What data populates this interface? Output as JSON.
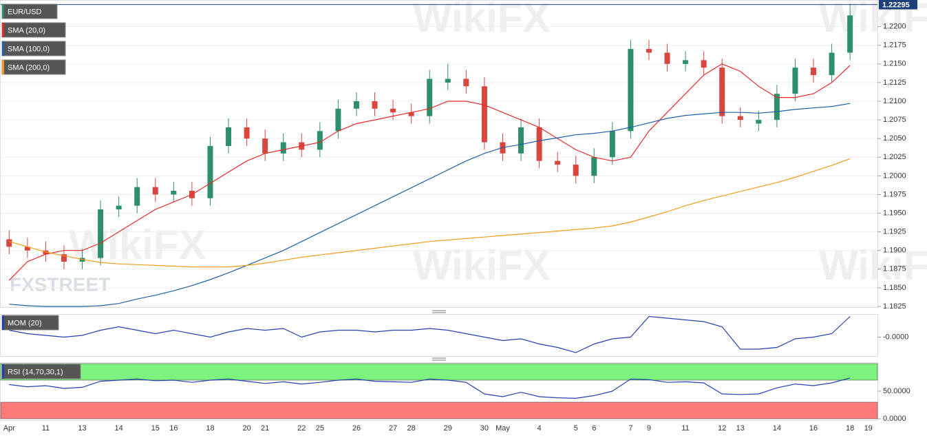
{
  "watermarks": {
    "brand": "WikiFX",
    "logo": "FXSTREET"
  },
  "chart_data": [
    {
      "type": "candlestick",
      "title": "EUR/USD",
      "categories": [
        "Apr",
        null,
        "11",
        null,
        "13",
        null,
        "14",
        null,
        "15",
        "16",
        null,
        "18",
        null,
        "20",
        "21",
        null,
        "22",
        "25",
        null,
        "26",
        null,
        "27",
        "28",
        null,
        "29",
        null,
        "30",
        "May",
        null,
        "4",
        null,
        "5",
        "6",
        null,
        "7",
        "9",
        null,
        "11",
        null,
        "12",
        "13",
        null,
        "14",
        null,
        "16",
        null,
        "18",
        "19"
      ],
      "open": [
        1.1915,
        1.1905,
        1.19,
        1.1895,
        1.1885,
        1.189,
        1.1955,
        1.196,
        1.1985,
        1.1975,
        1.198,
        1.197,
        1.204,
        1.2065,
        1.205,
        1.203,
        1.2045,
        1.2035,
        1.206,
        1.209,
        1.21,
        1.209,
        1.2085,
        1.208,
        1.2125,
        1.213,
        1.212,
        1.2045,
        1.203,
        1.2065,
        1.202,
        1.2015,
        1.2,
        1.2025,
        1.206,
        1.217,
        1.2165,
        1.215,
        1.2155,
        1.2145,
        1.208,
        1.207,
        1.2075,
        1.211,
        1.2145,
        1.2135,
        1.2165,
        null
      ],
      "high": [
        1.1927,
        1.1917,
        1.1912,
        1.1907,
        1.1902,
        1.1967,
        1.1972,
        1.1997,
        1.1997,
        1.1992,
        1.1992,
        1.2052,
        1.2077,
        1.2077,
        1.2062,
        1.2057,
        1.2057,
        1.2072,
        1.2102,
        1.2112,
        1.2112,
        1.2102,
        1.2097,
        1.2142,
        1.215,
        1.2142,
        1.2132,
        1.2057,
        1.2077,
        1.2077,
        1.2032,
        1.2027,
        1.2037,
        1.2072,
        1.2182,
        1.2182,
        1.2177,
        1.2167,
        1.2167,
        1.2157,
        1.2092,
        1.2087,
        1.2122,
        1.2157,
        1.2157,
        1.2177,
        1.2231,
        null
      ],
      "low": [
        1.1895,
        1.189,
        1.1885,
        1.1875,
        1.1875,
        1.188,
        1.1945,
        1.195,
        1.1965,
        1.1965,
        1.196,
        1.196,
        1.203,
        1.204,
        1.202,
        1.202,
        1.2025,
        1.2025,
        1.205,
        1.208,
        1.208,
        1.2075,
        1.207,
        1.207,
        1.2115,
        1.211,
        1.2035,
        1.202,
        1.202,
        1.201,
        1.2005,
        1.199,
        1.199,
        1.2015,
        1.205,
        1.2155,
        1.214,
        1.214,
        1.2135,
        1.207,
        1.2065,
        1.206,
        1.2065,
        1.21,
        1.2125,
        1.2125,
        1.2155,
        null
      ],
      "close": [
        1.1905,
        1.19,
        1.1895,
        1.1885,
        1.189,
        1.1955,
        1.196,
        1.1985,
        1.1975,
        1.198,
        1.197,
        1.204,
        1.2065,
        1.205,
        1.203,
        1.2045,
        1.2035,
        1.206,
        1.209,
        1.21,
        1.209,
        1.2085,
        1.208,
        1.213,
        1.213,
        1.212,
        1.2045,
        1.203,
        1.2065,
        1.202,
        1.2015,
        1.2,
        1.2025,
        1.206,
        1.217,
        1.2165,
        1.215,
        1.2155,
        1.2145,
        1.208,
        1.2075,
        1.2075,
        1.211,
        1.2145,
        1.2135,
        1.2165,
        1.2215,
        null
      ],
      "up_color": "#2f8f6a",
      "down_color": "#d9453f",
      "series": [
        {
          "name": "SMA (20,0)",
          "color": "#e8292a",
          "values": [
            1.186,
            1.1885,
            1.1895,
            1.19,
            1.19,
            1.191,
            1.1925,
            1.194,
            1.1955,
            1.1965,
            1.1975,
            1.199,
            1.2005,
            1.202,
            1.203,
            1.2035,
            1.204,
            1.2045,
            1.206,
            1.207,
            1.2075,
            1.208,
            1.2085,
            1.209,
            1.21,
            1.21,
            1.2095,
            1.2085,
            1.2075,
            1.2065,
            1.205,
            1.2035,
            1.2025,
            1.202,
            1.2025,
            1.206,
            1.2085,
            1.211,
            1.2135,
            1.215,
            1.214,
            1.212,
            1.2105,
            1.2105,
            1.211,
            1.2125,
            1.2148,
            null
          ]
        },
        {
          "name": "SMA (100,0)",
          "color": "#1f5fa8",
          "values": [
            1.1828,
            1.1826,
            1.1825,
            1.1825,
            1.1825,
            1.1826,
            1.1829,
            1.1835,
            1.184,
            1.1846,
            1.1853,
            1.1861,
            1.187,
            1.188,
            1.189,
            1.19,
            1.1912,
            1.1924,
            1.1936,
            1.1948,
            1.196,
            1.1972,
            1.1984,
            1.1996,
            1.2008,
            1.202,
            1.203,
            1.2038,
            1.2042,
            1.2047,
            1.2051,
            1.2055,
            1.2057,
            1.206,
            1.2065,
            1.2071,
            1.2077,
            1.2081,
            1.2083,
            1.2085,
            1.2085,
            1.2084,
            1.2086,
            1.2089,
            1.2091,
            1.2093,
            1.2097,
            null
          ]
        },
        {
          "name": "SMA (200,0)",
          "color": "#f59a1b",
          "values": [
            1.1912,
            1.1905,
            1.1898,
            1.1893,
            1.1888,
            1.1884,
            1.1882,
            1.1881,
            1.188,
            1.1879,
            1.1878,
            1.1878,
            1.1878,
            1.188,
            1.1883,
            1.1887,
            1.1891,
            1.1894,
            1.1897,
            1.19,
            1.1903,
            1.1906,
            1.1909,
            1.1912,
            1.1914,
            1.1916,
            1.1918,
            1.192,
            1.1922,
            1.1924,
            1.1926,
            1.1928,
            1.193,
            1.1933,
            1.1938,
            1.1945,
            1.1952,
            1.196,
            1.1967,
            1.1973,
            1.1979,
            1.1985,
            1.1991,
            1.1998,
            1.2006,
            1.2014,
            1.2023,
            null
          ]
        }
      ],
      "last_price": 1.22295,
      "last_price_color": "#1c3f7a",
      "ylim": [
        1.1825,
        1.2231
      ],
      "yticks": [
        {
          "value": 1.1825,
          "label": "1.1825"
        },
        {
          "value": 1.185,
          "label": "1.1850"
        },
        {
          "value": 1.1875,
          "label": "1.1875"
        },
        {
          "value": 1.19,
          "label": "1.1900"
        },
        {
          "value": 1.1925,
          "label": "1.1925"
        },
        {
          "value": 1.195,
          "label": "1.1950"
        },
        {
          "value": 1.1975,
          "label": "1.1975"
        },
        {
          "value": 1.2,
          "label": "1.2000"
        },
        {
          "value": 1.2025,
          "label": "1.2025"
        },
        {
          "value": 1.205,
          "label": "1.2050"
        },
        {
          "value": 1.2075,
          "label": "1.2075"
        },
        {
          "value": 1.21,
          "label": "1.2100"
        },
        {
          "value": 1.2125,
          "label": "1.2125"
        },
        {
          "value": 1.215,
          "label": "1.2150"
        },
        {
          "value": 1.2175,
          "label": "1.2175"
        },
        {
          "value": 1.22,
          "label": "1.2200"
        }
      ],
      "grid": true
    },
    {
      "type": "line",
      "series": [
        {
          "name": "MOM (20)",
          "color": "#2340b0",
          "values": [
            0.002,
            0.001,
            0.0005,
            0.0,
            0.0005,
            0.002,
            0.003,
            0.002,
            0.001,
            0.002,
            0.001,
            0.0,
            0.0015,
            0.0025,
            0.002,
            0.0025,
            0.0,
            0.0015,
            0.002,
            0.002,
            0.0015,
            0.002,
            0.002,
            0.0025,
            0.002,
            0.001,
            0.0,
            -0.001,
            -0.0005,
            -0.002,
            -0.003,
            -0.0045,
            -0.002,
            -0.0005,
            0.0,
            0.006,
            0.0055,
            0.005,
            0.0045,
            0.003,
            -0.0035,
            -0.0035,
            -0.003,
            -0.0005,
            0.0,
            0.001,
            0.006,
            null
          ]
        }
      ],
      "ylim": [
        -0.0055,
        0.0065
      ],
      "yticks": [
        {
          "value": 0,
          "label": "-0.0000"
        }
      ]
    },
    {
      "type": "line",
      "series": [
        {
          "name": "RSI (14,70,30,1)",
          "color": "#2340b0",
          "values": [
            62,
            58,
            60,
            55,
            57,
            68,
            70,
            72,
            69,
            70,
            66,
            70,
            72,
            68,
            64,
            67,
            63,
            66,
            70,
            72,
            68,
            67,
            66,
            72,
            70,
            66,
            45,
            40,
            48,
            40,
            38,
            37,
            42,
            50,
            72,
            71,
            66,
            67,
            65,
            45,
            44,
            45,
            56,
            63,
            60,
            65,
            74,
            null
          ]
        }
      ],
      "overbought": 70,
      "oversold": 30,
      "overbought_color": "#7ef27e",
      "oversold_color": "#ff7b7b",
      "ylim": [
        0,
        100
      ],
      "yticks": [
        {
          "value": 50,
          "label": "50.0000"
        },
        {
          "value": 0,
          "label": "0.0000"
        }
      ]
    }
  ]
}
